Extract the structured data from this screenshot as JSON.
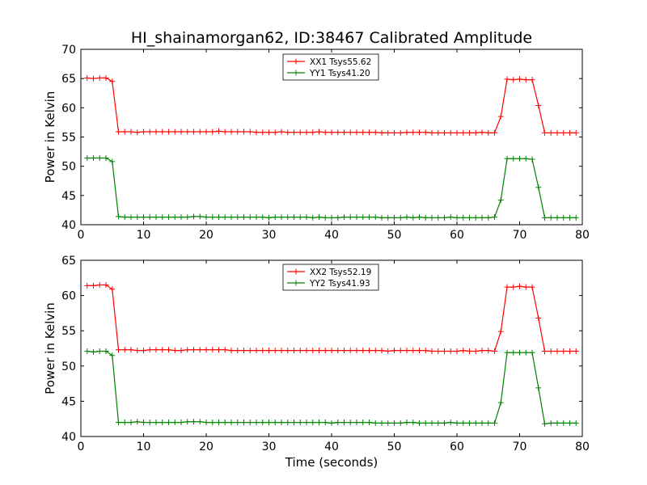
{
  "figure": {
    "title": "HI_shainamorgan62, ID:38467 Calibrated Amplitude",
    "xlabel": "Time (seconds)"
  },
  "chart_data": [
    {
      "type": "line",
      "title": "HI_shainamorgan62, ID:38467 Calibrated Amplitude",
      "xlabel": "",
      "ylabel": "Power in Kelvin",
      "xlim": [
        0,
        80
      ],
      "ylim": [
        40,
        70
      ],
      "xticks": [
        "0",
        "10",
        "20",
        "30",
        "40",
        "50",
        "60",
        "70",
        "80"
      ],
      "yticks": [
        "40",
        "45",
        "50",
        "55",
        "60",
        "65",
        "70"
      ],
      "grid": false,
      "legend_position": "top-center",
      "series": [
        {
          "name": "XX1 Tsys55.62",
          "color": "#ff0000",
          "x": [
            1,
            2,
            3,
            4,
            5,
            6,
            7,
            8,
            9,
            10,
            11,
            12,
            13,
            14,
            15,
            16,
            17,
            18,
            19,
            20,
            21,
            22,
            23,
            24,
            25,
            26,
            27,
            28,
            29,
            30,
            31,
            32,
            33,
            34,
            35,
            36,
            37,
            38,
            39,
            40,
            41,
            42,
            43,
            44,
            45,
            46,
            47,
            48,
            49,
            50,
            51,
            52,
            53,
            54,
            55,
            56,
            57,
            58,
            59,
            60,
            61,
            62,
            63,
            64,
            65,
            66,
            67,
            68,
            69,
            70,
            71,
            72,
            73,
            74,
            75,
            76,
            77,
            78,
            79
          ],
          "values": [
            65.1,
            65.0,
            65.1,
            65.1,
            64.5,
            55.9,
            55.9,
            55.9,
            55.8,
            55.9,
            55.9,
            55.9,
            55.9,
            55.9,
            55.9,
            55.9,
            55.9,
            55.9,
            55.9,
            55.9,
            55.9,
            56.0,
            55.9,
            55.9,
            55.9,
            55.9,
            55.9,
            55.8,
            55.8,
            55.8,
            55.8,
            55.9,
            55.8,
            55.8,
            55.8,
            55.8,
            55.8,
            55.9,
            55.8,
            55.8,
            55.8,
            55.8,
            55.8,
            55.8,
            55.8,
            55.8,
            55.8,
            55.7,
            55.7,
            55.7,
            55.7,
            55.8,
            55.8,
            55.8,
            55.8,
            55.7,
            55.7,
            55.7,
            55.7,
            55.7,
            55.7,
            55.7,
            55.7,
            55.8,
            55.7,
            55.7,
            58.5,
            64.9,
            64.8,
            64.9,
            64.8,
            64.8,
            60.4,
            55.7,
            55.7,
            55.7,
            55.7,
            55.7,
            55.7
          ]
        },
        {
          "name": "YY1 Tsys41.20",
          "color": "#008000",
          "x": [
            1,
            2,
            3,
            4,
            5,
            6,
            7,
            8,
            9,
            10,
            11,
            12,
            13,
            14,
            15,
            16,
            17,
            18,
            19,
            20,
            21,
            22,
            23,
            24,
            25,
            26,
            27,
            28,
            29,
            30,
            31,
            32,
            33,
            34,
            35,
            36,
            37,
            38,
            39,
            40,
            41,
            42,
            43,
            44,
            45,
            46,
            47,
            48,
            49,
            50,
            51,
            52,
            53,
            54,
            55,
            56,
            57,
            58,
            59,
            60,
            61,
            62,
            63,
            64,
            65,
            66,
            67,
            68,
            69,
            70,
            71,
            72,
            73,
            74,
            75,
            76,
            77,
            78,
            79
          ],
          "values": [
            51.4,
            51.4,
            51.4,
            51.4,
            50.8,
            41.4,
            41.3,
            41.3,
            41.3,
            41.3,
            41.3,
            41.3,
            41.3,
            41.3,
            41.3,
            41.3,
            41.3,
            41.4,
            41.4,
            41.3,
            41.3,
            41.3,
            41.3,
            41.3,
            41.3,
            41.3,
            41.3,
            41.3,
            41.3,
            41.2,
            41.3,
            41.3,
            41.3,
            41.3,
            41.3,
            41.3,
            41.2,
            41.3,
            41.2,
            41.2,
            41.2,
            41.3,
            41.3,
            41.3,
            41.3,
            41.3,
            41.3,
            41.2,
            41.2,
            41.2,
            41.2,
            41.3,
            41.2,
            41.3,
            41.2,
            41.2,
            41.2,
            41.2,
            41.3,
            41.2,
            41.2,
            41.2,
            41.2,
            41.2,
            41.2,
            41.3,
            44.2,
            51.3,
            51.3,
            51.3,
            51.3,
            51.2,
            46.4,
            41.2,
            41.2,
            41.2,
            41.2,
            41.2,
            41.2
          ]
        }
      ]
    },
    {
      "type": "line",
      "title": "",
      "xlabel": "Time (seconds)",
      "ylabel": "Power in Kelvin",
      "xlim": [
        0,
        80
      ],
      "ylim": [
        40,
        65
      ],
      "xticks": [
        "0",
        "10",
        "20",
        "30",
        "40",
        "50",
        "60",
        "70",
        "80"
      ],
      "yticks": [
        "40",
        "45",
        "50",
        "55",
        "60",
        "65"
      ],
      "grid": false,
      "legend_position": "top-center",
      "series": [
        {
          "name": "XX2 Tsys52.19",
          "color": "#ff0000",
          "x": [
            1,
            2,
            3,
            4,
            5,
            6,
            7,
            8,
            9,
            10,
            11,
            12,
            13,
            14,
            15,
            16,
            17,
            18,
            19,
            20,
            21,
            22,
            23,
            24,
            25,
            26,
            27,
            28,
            29,
            30,
            31,
            32,
            33,
            34,
            35,
            36,
            37,
            38,
            39,
            40,
            41,
            42,
            43,
            44,
            45,
            46,
            47,
            48,
            49,
            50,
            51,
            52,
            53,
            54,
            55,
            56,
            57,
            58,
            59,
            60,
            61,
            62,
            63,
            64,
            65,
            66,
            67,
            68,
            69,
            70,
            71,
            72,
            73,
            74,
            75,
            76,
            77,
            78,
            79
          ],
          "values": [
            61.4,
            61.4,
            61.5,
            61.5,
            60.9,
            52.3,
            52.3,
            52.3,
            52.2,
            52.2,
            52.3,
            52.3,
            52.3,
            52.3,
            52.2,
            52.2,
            52.3,
            52.3,
            52.3,
            52.3,
            52.3,
            52.3,
            52.3,
            52.2,
            52.2,
            52.2,
            52.2,
            52.2,
            52.2,
            52.2,
            52.2,
            52.2,
            52.2,
            52.2,
            52.2,
            52.2,
            52.2,
            52.2,
            52.2,
            52.2,
            52.2,
            52.2,
            52.2,
            52.2,
            52.2,
            52.2,
            52.2,
            52.2,
            52.1,
            52.2,
            52.2,
            52.2,
            52.2,
            52.2,
            52.2,
            52.1,
            52.1,
            52.1,
            52.1,
            52.1,
            52.2,
            52.1,
            52.1,
            52.2,
            52.2,
            52.1,
            54.9,
            61.2,
            61.2,
            61.3,
            61.2,
            61.2,
            56.8,
            52.1,
            52.1,
            52.1,
            52.1,
            52.1,
            52.1
          ]
        },
        {
          "name": "YY2 Tsys41.93",
          "color": "#008000",
          "x": [
            1,
            2,
            3,
            4,
            5,
            6,
            7,
            8,
            9,
            10,
            11,
            12,
            13,
            14,
            15,
            16,
            17,
            18,
            19,
            20,
            21,
            22,
            23,
            24,
            25,
            26,
            27,
            28,
            29,
            30,
            31,
            32,
            33,
            34,
            35,
            36,
            37,
            38,
            39,
            40,
            41,
            42,
            43,
            44,
            45,
            46,
            47,
            48,
            49,
            50,
            51,
            52,
            53,
            54,
            55,
            56,
            57,
            58,
            59,
            60,
            61,
            62,
            63,
            64,
            65,
            66,
            67,
            68,
            69,
            70,
            71,
            72,
            73,
            74,
            75,
            76,
            77,
            78,
            79
          ],
          "values": [
            52.1,
            52.0,
            52.1,
            52.1,
            51.5,
            42.0,
            42.0,
            42.0,
            42.1,
            42.0,
            42.0,
            42.0,
            42.0,
            42.0,
            42.0,
            42.0,
            42.1,
            42.1,
            42.1,
            42.0,
            42.0,
            42.0,
            42.0,
            42.0,
            42.0,
            42.0,
            42.0,
            42.0,
            42.0,
            42.0,
            42.0,
            42.0,
            42.0,
            42.0,
            42.0,
            42.0,
            42.0,
            42.0,
            42.0,
            41.9,
            42.0,
            42.0,
            42.0,
            42.0,
            42.0,
            42.0,
            41.9,
            41.9,
            41.9,
            41.9,
            41.9,
            42.0,
            42.0,
            41.9,
            41.9,
            41.9,
            41.9,
            41.9,
            42.0,
            41.9,
            41.9,
            41.9,
            41.9,
            41.9,
            41.9,
            41.9,
            44.8,
            51.9,
            51.9,
            51.9,
            51.9,
            51.9,
            46.9,
            41.8,
            41.9,
            41.9,
            41.9,
            41.9,
            41.9
          ]
        }
      ]
    }
  ]
}
